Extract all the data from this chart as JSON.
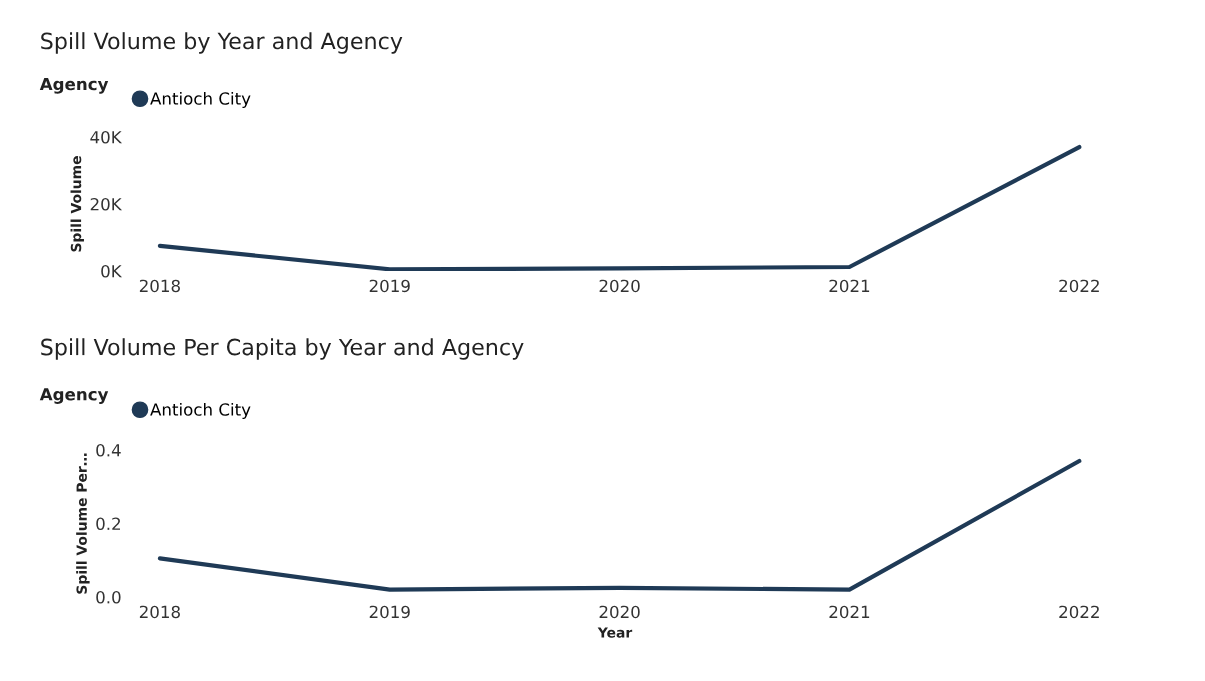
{
  "chart_data": [
    {
      "type": "line",
      "title": "Spill Volume by Year and Agency",
      "ylabel": "Spill Volume",
      "legend_title": "Agency",
      "legend": "top left",
      "categories": [
        "2018",
        "2019",
        "2020",
        "2021",
        "2022"
      ],
      "series": [
        {
          "name": "Antioch City",
          "color": "#1f3a56",
          "values": [
            7500,
            500,
            800,
            1200,
            37000
          ]
        }
      ],
      "ylim": [
        0,
        40000
      ],
      "yticks": [
        {
          "value": 0,
          "label": "0K"
        },
        {
          "value": 20000,
          "label": "20K"
        },
        {
          "value": 40000,
          "label": "40K"
        }
      ],
      "grid": false
    },
    {
      "type": "line",
      "title": "Spill Volume Per Capita by Year and Agency",
      "ylabel": "Spill Volume Per…",
      "xlabel": "Year",
      "legend_title": "Agency",
      "legend": "top left",
      "categories": [
        "2018",
        "2019",
        "2020",
        "2021",
        "2022"
      ],
      "series": [
        {
          "name": "Antioch City",
          "color": "#1f3a56",
          "values": [
            0.105,
            0.02,
            0.025,
            0.02,
            0.37
          ]
        }
      ],
      "ylim": [
        0,
        0.4
      ],
      "yticks": [
        {
          "value": 0,
          "label": "0.0"
        },
        0.2,
        0.4
      ],
      "grid": false
    }
  ]
}
